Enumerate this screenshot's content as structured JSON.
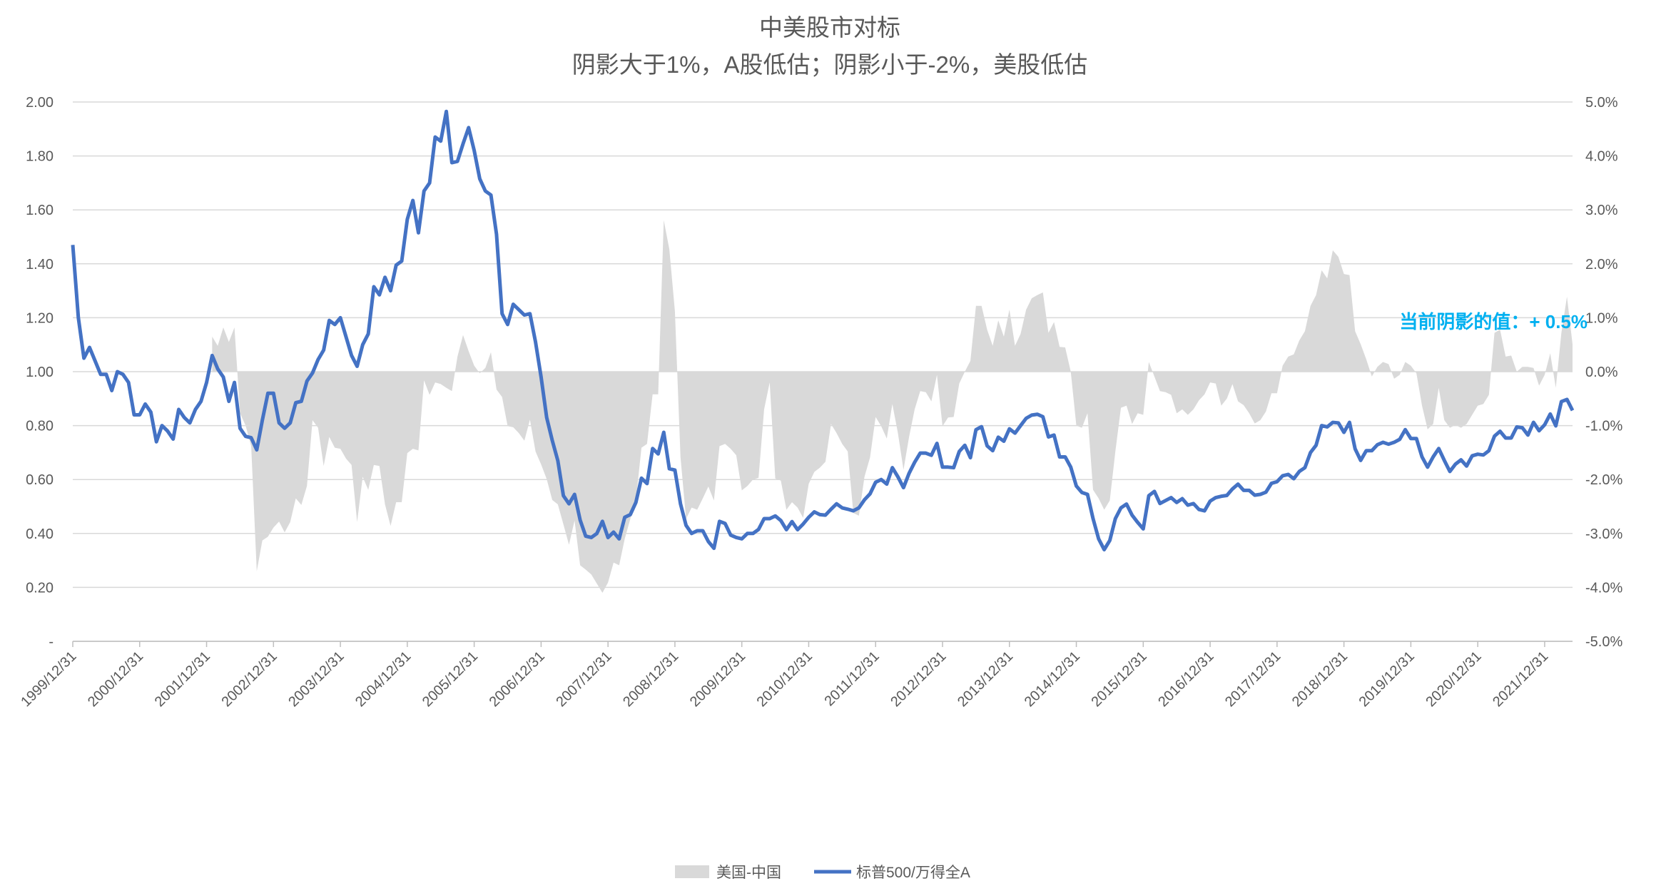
{
  "chart_data": {
    "type": "line+area",
    "title": "中美股市对标",
    "subtitle": "阴影大于1%，A股低估；阴影小于-2%，美股低估",
    "annotation": "当前阴影的值：+ 0.5%",
    "xlabel": "",
    "ylabel_left": "",
    "ylabel_right": "",
    "ylim_left": [
      0,
      2.0
    ],
    "ylim_right": [
      -5.0,
      5.0
    ],
    "left_tick_labels": [
      "-",
      "0.20",
      "0.40",
      "0.60",
      "0.80",
      "1.00",
      "1.20",
      "1.40",
      "1.60",
      "1.80",
      "2.00"
    ],
    "right_tick_labels": [
      "-5.0%",
      "-4.0%",
      "-3.0%",
      "-2.0%",
      "-1.0%",
      "0.0%",
      "1.0%",
      "2.0%",
      "3.0%",
      "4.0%",
      "5.0%"
    ],
    "x_tick_labels": [
      "1999/12/31",
      "2000/12/31",
      "2001/12/31",
      "2002/12/31",
      "2003/12/31",
      "2004/12/31",
      "2005/12/31",
      "2006/12/31",
      "2007/12/31",
      "2008/12/31",
      "2009/12/31",
      "2010/12/31",
      "2011/12/31",
      "2012/12/31",
      "2013/12/31",
      "2014/12/31",
      "2015/12/31",
      "2016/12/31",
      "2017/12/31",
      "2018/12/31",
      "2019/12/31",
      "2020/12/31",
      "2021/12/31"
    ],
    "grid": true,
    "legend_position": "bottom",
    "x": [
      "1999-12",
      "2000-01",
      "2000-02",
      "2000-03",
      "2000-04",
      "2000-05",
      "2000-06",
      "2000-07",
      "2000-08",
      "2000-09",
      "2000-10",
      "2000-11",
      "2000-12",
      "2001-01",
      "2001-02",
      "2001-03",
      "2001-04",
      "2001-05",
      "2001-06",
      "2001-07",
      "2001-08",
      "2001-09",
      "2001-10",
      "2001-11",
      "2001-12",
      "2002-01",
      "2002-02",
      "2002-03",
      "2002-04",
      "2002-05",
      "2002-06",
      "2002-07",
      "2002-08",
      "2002-09",
      "2002-10",
      "2002-11",
      "2002-12",
      "2003-01",
      "2003-02",
      "2003-03",
      "2003-04",
      "2003-05",
      "2003-06",
      "2003-07",
      "2003-08",
      "2003-09",
      "2003-10",
      "2003-11",
      "2003-12",
      "2004-01",
      "2004-02",
      "2004-03",
      "2004-04",
      "2004-05",
      "2004-06",
      "2004-07",
      "2004-08",
      "2004-09",
      "2004-10",
      "2004-11",
      "2004-12",
      "2005-01",
      "2005-02",
      "2005-03",
      "2005-04",
      "2005-05",
      "2005-06",
      "2005-07",
      "2005-08",
      "2005-09",
      "2005-10",
      "2005-11",
      "2005-12",
      "2006-01",
      "2006-02",
      "2006-03",
      "2006-04",
      "2006-05",
      "2006-06",
      "2006-07",
      "2006-08",
      "2006-09",
      "2006-10",
      "2006-11",
      "2006-12",
      "2007-01",
      "2007-02",
      "2007-03",
      "2007-04",
      "2007-05",
      "2007-06",
      "2007-07",
      "2007-08",
      "2007-09",
      "2007-10",
      "2007-11",
      "2007-12",
      "2008-01",
      "2008-02",
      "2008-03",
      "2008-04",
      "2008-05",
      "2008-06",
      "2008-07",
      "2008-08",
      "2008-09",
      "2008-10",
      "2008-11",
      "2008-12",
      "2009-01",
      "2009-02",
      "2009-03",
      "2009-04",
      "2009-05",
      "2009-06",
      "2009-07",
      "2009-08",
      "2009-09",
      "2009-10",
      "2009-11",
      "2009-12",
      "2010-01",
      "2010-02",
      "2010-03",
      "2010-04",
      "2010-05",
      "2010-06",
      "2010-07",
      "2010-08",
      "2010-09",
      "2010-10",
      "2010-11",
      "2010-12",
      "2011-01",
      "2011-02",
      "2011-03",
      "2011-04",
      "2011-05",
      "2011-06",
      "2011-07",
      "2011-08",
      "2011-09",
      "2011-10",
      "2011-11",
      "2011-12",
      "2012-01",
      "2012-02",
      "2012-03",
      "2012-04",
      "2012-05",
      "2012-06",
      "2012-07",
      "2012-08",
      "2012-09",
      "2012-10",
      "2012-11",
      "2012-12",
      "2013-01",
      "2013-02",
      "2013-03",
      "2013-04",
      "2013-05",
      "2013-06",
      "2013-07",
      "2013-08",
      "2013-09",
      "2013-10",
      "2013-11",
      "2013-12",
      "2014-01",
      "2014-02",
      "2014-03",
      "2014-04",
      "2014-05",
      "2014-06",
      "2014-07",
      "2014-08",
      "2014-09",
      "2014-10",
      "2014-11",
      "2014-12",
      "2015-01",
      "2015-02",
      "2015-03",
      "2015-04",
      "2015-05",
      "2015-06",
      "2015-07",
      "2015-08",
      "2015-09",
      "2015-10",
      "2015-11",
      "2015-12",
      "2016-01",
      "2016-02",
      "2016-03",
      "2016-04",
      "2016-05",
      "2016-06",
      "2016-07",
      "2016-08",
      "2016-09",
      "2016-10",
      "2016-11",
      "2016-12",
      "2017-01",
      "2017-02",
      "2017-03",
      "2017-04",
      "2017-05",
      "2017-06",
      "2017-07",
      "2017-08",
      "2017-09",
      "2017-10",
      "2017-11",
      "2017-12",
      "2018-01",
      "2018-02",
      "2018-03",
      "2018-04",
      "2018-05",
      "2018-06",
      "2018-07",
      "2018-08",
      "2018-09",
      "2018-10",
      "2018-11",
      "2018-12",
      "2019-01",
      "2019-02",
      "2019-03",
      "2019-04",
      "2019-05",
      "2019-06",
      "2019-07",
      "2019-08",
      "2019-09",
      "2019-10",
      "2019-11",
      "2019-12",
      "2020-01",
      "2020-02",
      "2020-03",
      "2020-04",
      "2020-05",
      "2020-06",
      "2020-07",
      "2020-08",
      "2020-09",
      "2020-10",
      "2020-11",
      "2020-12",
      "2021-01",
      "2021-02",
      "2021-03",
      "2021-04",
      "2021-05",
      "2021-06",
      "2021-07",
      "2021-08",
      "2021-09",
      "2021-10",
      "2021-11",
      "2021-12",
      "2022-01",
      "2022-02",
      "2022-03",
      "2022-04",
      "2022-05"
    ],
    "series": [
      {
        "name": "美国-中国",
        "type": "area",
        "axis": "right",
        "unit": "%",
        "color": "#D9D9D9",
        "values": [
          null,
          null,
          null,
          null,
          null,
          null,
          null,
          null,
          null,
          null,
          null,
          null,
          null,
          null,
          null,
          null,
          null,
          null,
          null,
          null,
          null,
          null,
          null,
          null,
          null,
          0.65,
          0.48,
          0.82,
          0.55,
          0.82,
          -0.77,
          -1.0,
          -1.38,
          -3.7,
          -3.13,
          -3.06,
          -2.89,
          -2.78,
          -2.98,
          -2.79,
          -2.35,
          -2.47,
          -2.12,
          -0.9,
          -1.04,
          -1.75,
          -1.21,
          -1.41,
          -1.43,
          -1.61,
          -1.73,
          -2.79,
          -1.95,
          -2.19,
          -1.73,
          -1.75,
          -2.46,
          -2.86,
          -2.42,
          -2.42,
          -1.51,
          -1.43,
          -1.46,
          -0.16,
          -0.43,
          -0.2,
          -0.23,
          -0.3,
          -0.36,
          0.28,
          0.68,
          0.38,
          0.11,
          -0.03,
          0.07,
          0.36,
          -0.33,
          -0.47,
          -1.01,
          -1.03,
          -1.14,
          -1.28,
          -0.89,
          -1.48,
          -1.72,
          -1.99,
          -2.38,
          -2.46,
          -2.83,
          -3.21,
          -2.76,
          -3.59,
          -3.67,
          -3.76,
          -3.93,
          -4.1,
          -3.91,
          -3.54,
          -3.59,
          -3.1,
          -2.73,
          -2.39,
          -1.41,
          -1.34,
          -0.42,
          -0.42,
          2.81,
          2.27,
          1.12,
          -1.58,
          -2.73,
          -2.52,
          -2.56,
          -2.35,
          -2.13,
          -2.39,
          -1.38,
          -1.34,
          -1.43,
          -1.55,
          -2.2,
          -2.12,
          -2.0,
          -1.97,
          -0.7,
          -0.2,
          -1.98,
          -2.02,
          -2.56,
          -2.42,
          -2.52,
          -2.71,
          -2.08,
          -1.86,
          -1.78,
          -1.67,
          -0.97,
          -1.14,
          -1.34,
          -1.48,
          -2.62,
          -2.67,
          -1.95,
          -1.59,
          -0.84,
          -1.01,
          -1.24,
          -0.6,
          -1.14,
          -1.82,
          -1.21,
          -0.7,
          -0.36,
          -0.38,
          -0.55,
          -0.06,
          -1.01,
          -0.85,
          -0.84,
          -0.22,
          0.0,
          0.2,
          1.22,
          1.22,
          0.78,
          0.48,
          0.95,
          0.65,
          1.15,
          0.48,
          0.7,
          1.15,
          1.36,
          1.42,
          1.47,
          0.72,
          0.92,
          0.46,
          0.45,
          0.0,
          -1.0,
          -1.04,
          -0.77,
          -2.19,
          -2.35,
          -2.56,
          -2.39,
          -1.48,
          -0.67,
          -0.63,
          -0.97,
          -0.77,
          -0.8,
          0.18,
          -0.09,
          -0.36,
          -0.38,
          -0.43,
          -0.77,
          -0.7,
          -0.8,
          -0.7,
          -0.53,
          -0.42,
          -0.2,
          -0.22,
          -0.63,
          -0.5,
          -0.23,
          -0.55,
          -0.62,
          -0.77,
          -0.96,
          -0.9,
          -0.74,
          -0.4,
          -0.4,
          0.11,
          0.28,
          0.32,
          0.58,
          0.75,
          1.22,
          1.42,
          1.88,
          1.73,
          2.25,
          2.13,
          1.81,
          1.79,
          0.75,
          0.51,
          0.23,
          -0.09,
          0.09,
          0.18,
          0.14,
          -0.13,
          -0.06,
          0.18,
          0.11,
          -0.03,
          -0.63,
          -1.07,
          -0.97,
          -0.3,
          -0.9,
          -1.04,
          -0.99,
          -1.04,
          -0.97,
          -0.8,
          -0.63,
          -0.6,
          -0.43,
          0.72,
          0.78,
          0.28,
          0.3,
          0.0,
          0.09,
          0.09,
          0.07,
          -0.26,
          -0.06,
          0.34,
          -0.3,
          0.72,
          1.39,
          0.51
        ]
      },
      {
        "name": "标普500/万得全A",
        "type": "line",
        "axis": "left",
        "color": "#4472C4",
        "values": [
          1.47,
          1.2,
          1.05,
          1.09,
          1.04,
          0.99,
          0.99,
          0.93,
          1.0,
          0.99,
          0.96,
          0.84,
          0.84,
          0.88,
          0.85,
          0.74,
          0.8,
          0.78,
          0.75,
          0.86,
          0.83,
          0.81,
          0.86,
          0.89,
          0.96,
          1.06,
          1.01,
          0.98,
          0.89,
          0.96,
          0.79,
          0.76,
          0.755,
          0.71,
          0.82,
          0.92,
          0.92,
          0.81,
          0.79,
          0.81,
          0.885,
          0.89,
          0.965,
          0.995,
          1.045,
          1.08,
          1.19,
          1.175,
          1.2,
          1.13,
          1.06,
          1.02,
          1.1,
          1.14,
          1.315,
          1.285,
          1.35,
          1.3,
          1.395,
          1.41,
          1.565,
          1.635,
          1.515,
          1.67,
          1.7,
          1.87,
          1.855,
          1.965,
          1.775,
          1.78,
          1.845,
          1.905,
          1.82,
          1.715,
          1.67,
          1.655,
          1.51,
          1.215,
          1.175,
          1.25,
          1.23,
          1.21,
          1.215,
          1.11,
          0.98,
          0.83,
          0.745,
          0.67,
          0.54,
          0.51,
          0.545,
          0.45,
          0.39,
          0.385,
          0.4,
          0.445,
          0.385,
          0.405,
          0.38,
          0.46,
          0.47,
          0.515,
          0.605,
          0.585,
          0.715,
          0.695,
          0.775,
          0.64,
          0.635,
          0.51,
          0.43,
          0.4,
          0.41,
          0.41,
          0.37,
          0.345,
          0.445,
          0.437,
          0.394,
          0.385,
          0.38,
          0.4,
          0.4,
          0.415,
          0.455,
          0.455,
          0.465,
          0.448,
          0.414,
          0.444,
          0.414,
          0.435,
          0.46,
          0.48,
          0.47,
          0.468,
          0.49,
          0.51,
          0.495,
          0.49,
          0.484,
          0.495,
          0.525,
          0.547,
          0.59,
          0.6,
          0.583,
          0.644,
          0.61,
          0.57,
          0.623,
          0.664,
          0.698,
          0.698,
          0.69,
          0.734,
          0.646,
          0.646,
          0.644,
          0.704,
          0.727,
          0.681,
          0.785,
          0.796,
          0.725,
          0.707,
          0.757,
          0.742,
          0.788,
          0.772,
          0.8,
          0.827,
          0.839,
          0.842,
          0.833,
          0.758,
          0.765,
          0.684,
          0.684,
          0.646,
          0.576,
          0.552,
          0.545,
          0.455,
          0.38,
          0.34,
          0.374,
          0.455,
          0.495,
          0.509,
          0.468,
          0.441,
          0.417,
          0.54,
          0.556,
          0.511,
          0.522,
          0.533,
          0.515,
          0.529,
          0.505,
          0.511,
          0.489,
          0.484,
          0.52,
          0.533,
          0.538,
          0.541,
          0.565,
          0.583,
          0.56,
          0.56,
          0.542,
          0.545,
          0.553,
          0.586,
          0.592,
          0.614,
          0.619,
          0.603,
          0.63,
          0.644,
          0.7,
          0.727,
          0.8,
          0.795,
          0.812,
          0.81,
          0.775,
          0.812,
          0.714,
          0.671,
          0.707,
          0.707,
          0.729,
          0.738,
          0.731,
          0.738,
          0.749,
          0.785,
          0.752,
          0.752,
          0.684,
          0.646,
          0.684,
          0.715,
          0.671,
          0.63,
          0.657,
          0.673,
          0.65,
          0.688,
          0.694,
          0.691,
          0.707,
          0.761,
          0.779,
          0.754,
          0.754,
          0.795,
          0.792,
          0.765,
          0.812,
          0.781,
          0.803,
          0.843,
          0.799,
          0.889,
          0.897,
          0.856
        ]
      }
    ]
  }
}
